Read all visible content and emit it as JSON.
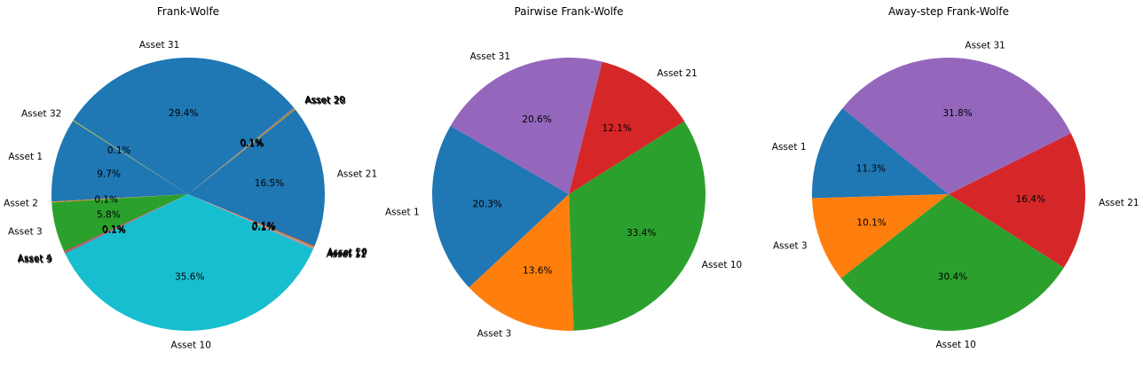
{
  "charts": [
    {
      "type": "pie",
      "title": "Frank-Wolfe",
      "start_angle_deg": 39.4,
      "slices": [
        {
          "label": "Asset 31",
          "value": 29.4,
          "pct": "29.4%",
          "color": "#1f77b4"
        },
        {
          "label": "Asset 32",
          "value": 0.1,
          "pct": "0.1%",
          "color": "#bcbd22"
        },
        {
          "label": "Asset 1",
          "value": 9.7,
          "pct": "9.7%",
          "color": "#1f77b4"
        },
        {
          "label": "Asset 2",
          "value": 0.1,
          "pct": "0.1%",
          "color": "#ff7f0e"
        },
        {
          "label": "Asset 3",
          "value": 5.8,
          "pct": "5.8%",
          "color": "#2ca02c"
        },
        {
          "label": "Asset 4",
          "value": 0.1,
          "pct": "0.1%",
          "color": "#d62728"
        },
        {
          "label": "Asset 5",
          "value": 0.1,
          "pct": "0.1%",
          "color": "#9467bd"
        },
        {
          "label": "Asset 9",
          "value": 0.1,
          "pct": "0.1%",
          "color": "#8c564b"
        },
        {
          "label": "Asset 10",
          "value": 35.6,
          "pct": "35.6%",
          "color": "#17becf"
        },
        {
          "label": "Asset 11",
          "value": 0.1,
          "pct": "0.1%",
          "color": "#e377c2"
        },
        {
          "label": "Asset 12",
          "value": 0.1,
          "pct": "0.1%",
          "color": "#7f7f7f"
        },
        {
          "label": "Asset 19",
          "value": 0.1,
          "pct": "0.1%",
          "color": "#bcbd22"
        },
        {
          "label": "Asset 20",
          "value": 0.1,
          "pct": "0.1%",
          "color": "#d62728"
        },
        {
          "label": "Asset 21",
          "value": 16.5,
          "pct": "16.5%",
          "color": "#1f77b4"
        },
        {
          "label": "Asset 28",
          "value": 0.1,
          "pct": "0.1%",
          "color": "#ff7f0e"
        },
        {
          "label": "Asset 29",
          "value": 0.1,
          "pct": "0.1%",
          "color": "#2ca02c"
        },
        {
          "label": "Asset 30",
          "value": 0.1,
          "pct": "0.1%",
          "color": "#9467bd"
        }
      ]
    },
    {
      "type": "pie",
      "title": "Pairwise Frank-Wolfe",
      "start_angle_deg": 150,
      "slices": [
        {
          "label": "Asset 1",
          "value": 20.3,
          "pct": "20.3%",
          "color": "#1f77b4"
        },
        {
          "label": "Asset 3",
          "value": 13.6,
          "pct": "13.6%",
          "color": "#ff7f0e"
        },
        {
          "label": "Asset 10",
          "value": 33.4,
          "pct": "33.4%",
          "color": "#2ca02c"
        },
        {
          "label": "Asset 21",
          "value": 12.1,
          "pct": "12.1%",
          "color": "#d62728"
        },
        {
          "label": "Asset 31",
          "value": 20.6,
          "pct": "20.6%",
          "color": "#9467bd"
        }
      ]
    },
    {
      "type": "pie",
      "title": "Away-step Frank-Wolfe",
      "start_angle_deg": 141,
      "slices": [
        {
          "label": "Asset 1",
          "value": 11.3,
          "pct": "11.3%",
          "color": "#1f77b4"
        },
        {
          "label": "Asset 3",
          "value": 10.1,
          "pct": "10.1%",
          "color": "#ff7f0e"
        },
        {
          "label": "Asset 10",
          "value": 30.4,
          "pct": "30.4%",
          "color": "#2ca02c"
        },
        {
          "label": "Asset 21",
          "value": 16.4,
          "pct": "16.4%",
          "color": "#d62728"
        },
        {
          "label": "Asset 31",
          "value": 31.8,
          "pct": "31.8%",
          "color": "#9467bd"
        }
      ]
    }
  ]
}
